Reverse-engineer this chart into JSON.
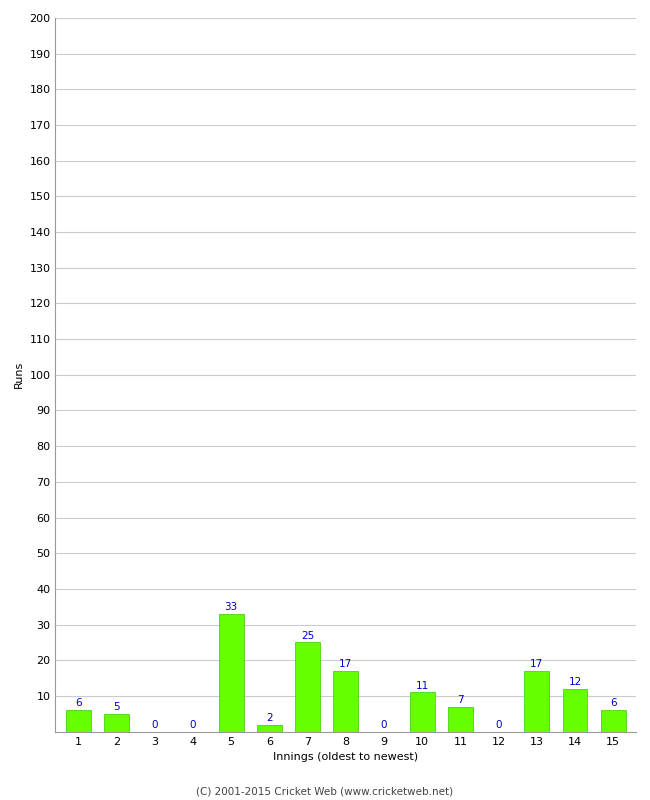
{
  "xlabel": "Innings (oldest to newest)",
  "ylabel": "Runs",
  "categories": [
    1,
    2,
    3,
    4,
    5,
    6,
    7,
    8,
    9,
    10,
    11,
    12,
    13,
    14,
    15
  ],
  "values": [
    6,
    5,
    0,
    0,
    33,
    2,
    25,
    17,
    0,
    11,
    7,
    0,
    17,
    12,
    6
  ],
  "bar_color": "#66ff00",
  "bar_edge_color": "#33cc00",
  "label_color": "#0000cc",
  "ylim": [
    0,
    200
  ],
  "yticks": [
    10,
    20,
    30,
    40,
    50,
    60,
    70,
    80,
    90,
    100,
    110,
    120,
    130,
    140,
    150,
    160,
    170,
    180,
    190,
    200
  ],
  "background_color": "#ffffff",
  "grid_color": "#cccccc",
  "footer": "(C) 2001-2015 Cricket Web (www.cricketweb.net)",
  "label_fontsize": 7.5,
  "axis_label_fontsize": 8,
  "tick_fontsize": 8,
  "footer_fontsize": 7.5
}
